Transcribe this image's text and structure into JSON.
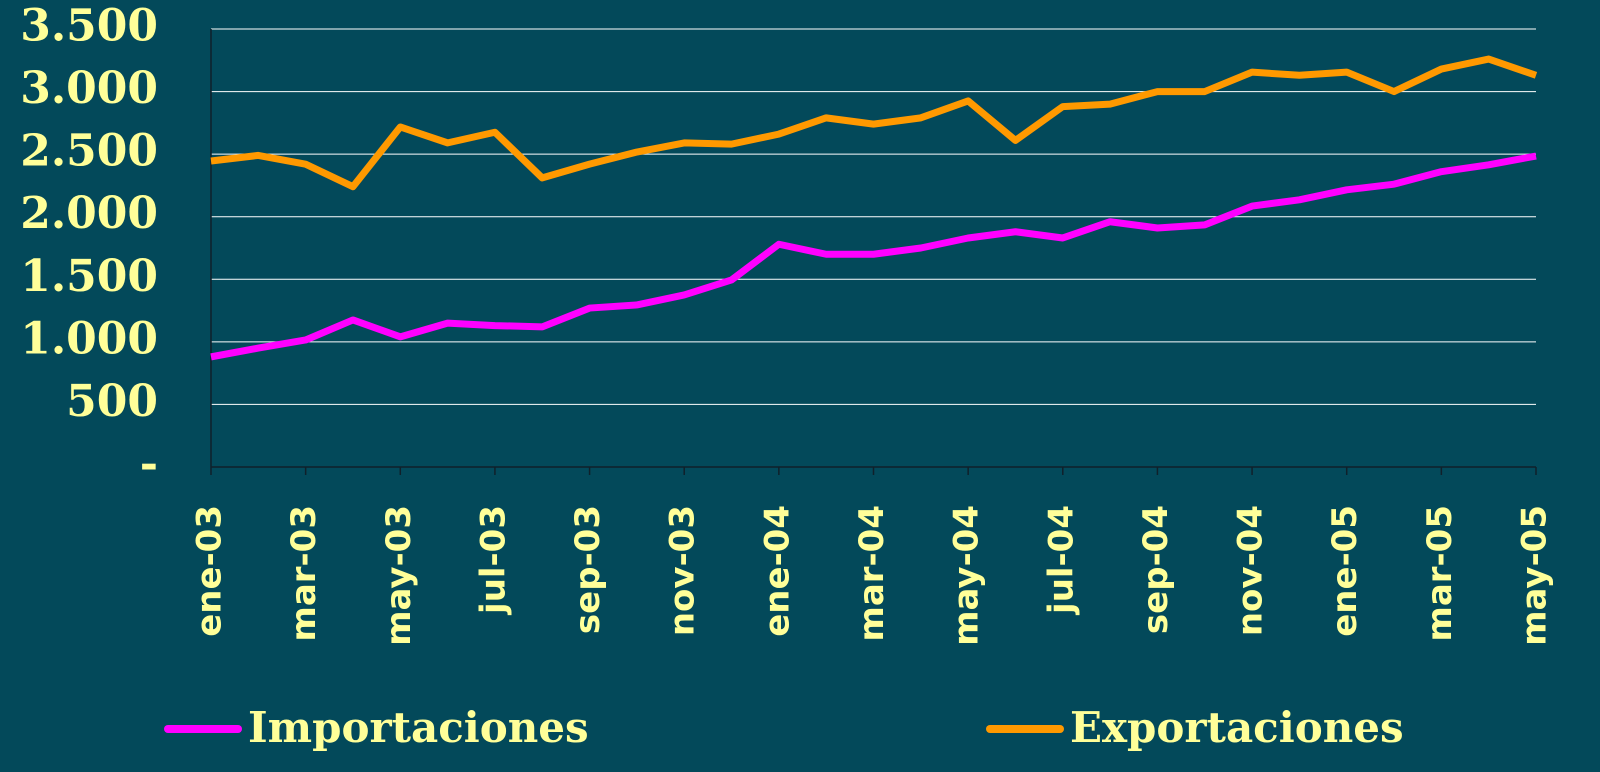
{
  "chart_data": {
    "type": "line",
    "categories": [
      "ene-03",
      null,
      "mar-03",
      null,
      "may-03",
      null,
      "jul-03",
      null,
      "sep-03",
      null,
      "nov-03",
      null,
      "ene-04",
      null,
      "mar-04",
      null,
      "may-04",
      null,
      "jul-04",
      null,
      "sep-04",
      null,
      "nov-04",
      null,
      "ene-05",
      null,
      "mar-05",
      null,
      "may-05"
    ],
    "series": [
      {
        "name": "Importaciones",
        "color": "#ff00ff",
        "values": [
          880,
          950,
          1015,
          1175,
          1040,
          1150,
          1130,
          1120,
          1270,
          1295,
          1375,
          1495,
          1780,
          1700,
          1700,
          1750,
          1830,
          1880,
          1830,
          1960,
          1910,
          1935,
          2085,
          2135,
          2215,
          2260,
          2360,
          2415,
          2485
        ]
      },
      {
        "name": "Exportaciones",
        "color": "#ff9900",
        "values": [
          2445,
          2490,
          2420,
          2240,
          2717,
          2590,
          2675,
          2310,
          2420,
          2517,
          2590,
          2580,
          2660,
          2790,
          2740,
          2790,
          2925,
          2610,
          2880,
          2900,
          3000,
          3000,
          3155,
          3130,
          3155,
          3000,
          3180,
          3260,
          3130
        ]
      }
    ],
    "ylim": [
      0,
      3500
    ],
    "yticks": [
      {
        "value": 0,
        "label": "-"
      },
      500,
      {
        "value": 1000,
        "label": "1.000"
      },
      {
        "value": 1500,
        "label": "1.500"
      },
      {
        "value": 2000,
        "label": "2.000"
      },
      {
        "value": 2500,
        "label": "2.500"
      },
      {
        "value": 3000,
        "label": "3.000"
      },
      {
        "value": 3500,
        "label": "3.500"
      }
    ],
    "grid": true
  }
}
